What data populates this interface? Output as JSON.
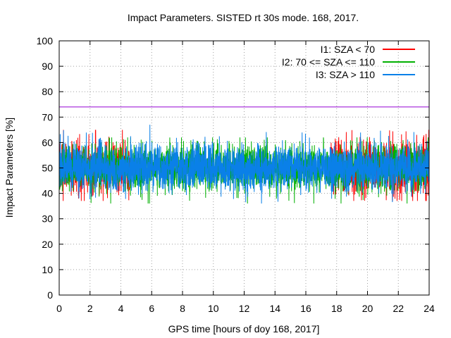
{
  "chart_data": {
    "type": "line",
    "title": "Impact Parameters. SISTED rt 30s mode. 168, 2017.",
    "xlabel": "GPS time [hours of doy 168, 2017]",
    "ylabel": "Impact Parameters [%]",
    "xlim": [
      0,
      24
    ],
    "ylim": [
      0,
      100
    ],
    "xticks": [
      0,
      2,
      4,
      6,
      8,
      10,
      12,
      14,
      16,
      18,
      20,
      22,
      24
    ],
    "yticks": [
      0,
      10,
      20,
      30,
      40,
      50,
      60,
      70,
      80,
      90,
      100
    ],
    "grid": true,
    "legend_position": "top-right",
    "reference_line": {
      "y": 74,
      "color": "#9400d3"
    },
    "series": [
      {
        "name": "I1: SZA < 70",
        "color": "#ff0000",
        "center": 50,
        "spread": 5.5,
        "min": 37,
        "max": 65,
        "active_ranges": [
          [
            0,
            4.6
          ],
          [
            17.6,
            24
          ]
        ]
      },
      {
        "name": "I2: 70 <= SZA <= 110",
        "color": "#00b000",
        "center": 50,
        "spread": 4.5,
        "min": 36,
        "max": 62,
        "active_ranges": [
          [
            0,
            24
          ]
        ]
      },
      {
        "name": "I3: SZA > 110",
        "color": "#0a80e8",
        "center": 50,
        "spread": 4.5,
        "min": 34,
        "max": 67,
        "active_ranges": [
          [
            0,
            24
          ]
        ]
      }
    ]
  }
}
